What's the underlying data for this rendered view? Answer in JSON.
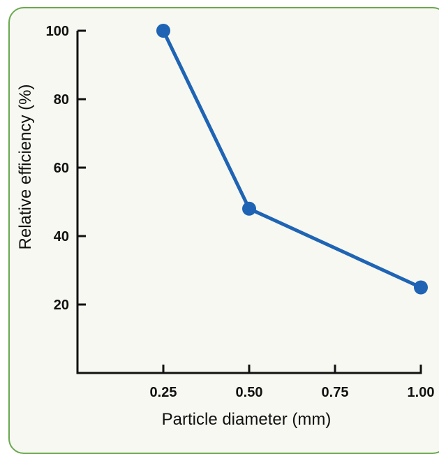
{
  "colors": {
    "panel_border": "#6aa84f",
    "panel_background": "#f7f8f1",
    "series_color": "#1f64b4",
    "axis_color": "#111111"
  },
  "chart_data": {
    "type": "line",
    "title": "",
    "xlabel": "Particle diameter (mm)",
    "ylabel": "Relative efficiency (%)",
    "xlim": [
      0,
      1.0
    ],
    "ylim": [
      0,
      100
    ],
    "x_ticks": [
      0.25,
      0.5,
      0.75,
      1.0
    ],
    "x_tick_labels": [
      "0.25",
      "0.50",
      "0.75",
      "1.00"
    ],
    "y_ticks": [
      20,
      40,
      60,
      80,
      100
    ],
    "y_tick_labels": [
      "20",
      "40",
      "60",
      "80",
      "100"
    ],
    "grid": false,
    "series": [
      {
        "x": [
          0.25,
          0.5,
          1.0
        ],
        "y": [
          100,
          48,
          25
        ]
      }
    ]
  }
}
